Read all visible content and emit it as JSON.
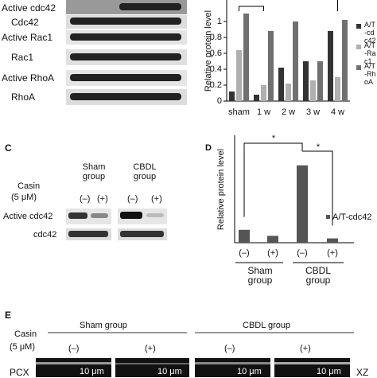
{
  "panel_a": {
    "rows": [
      "Active cdc42",
      "Cdc42",
      "Active Rac1",
      "Rac1",
      "Active RhoA",
      "RhoA"
    ]
  },
  "panel_c": {
    "letter": "C",
    "treatment": "Casin",
    "dose": "(5 μM)",
    "groups": [
      "Sham group",
      "CBDL group"
    ],
    "signs": [
      "(–)",
      "(+)",
      "(–)",
      "(+)"
    ],
    "rows": [
      "Active cdc42",
      "cdc42"
    ]
  },
  "panel_e": {
    "letter": "E",
    "treatment": "Casin",
    "dose": "(5 μM)",
    "groups": [
      "Sham group",
      "CBDL group"
    ],
    "signs": [
      "(–)",
      "(+)",
      "(–)",
      "(+)"
    ],
    "row": "PCX",
    "scale_bar": "10 μm",
    "view": "XZ"
  },
  "chart_data": [
    {
      "type": "bar",
      "y_label": "Relative protein level",
      "categories": [
        "sham",
        "1 w",
        "2 w",
        "3 w",
        "4 w"
      ],
      "series": [
        {
          "name": "A/T-cdc42",
          "color": "#333333",
          "values": [
            0.12,
            0.08,
            0.42,
            0.5,
            0.88
          ]
        },
        {
          "name": "A/T-Rac1",
          "color": "#b0b0b0",
          "values": [
            0.64,
            0.2,
            0.22,
            0.26,
            0.3
          ]
        },
        {
          "name": "A/T-RhoA",
          "color": "#707070",
          "values": [
            1.1,
            0.88,
            1.0,
            0.5,
            1.02
          ]
        }
      ],
      "ylim": [
        0,
        1.27
      ],
      "yticks": [
        0,
        0.2,
        0.4,
        0.6,
        0.8,
        1
      ]
    },
    {
      "type": "bar",
      "letter": "D",
      "y_label": "Relative protein level",
      "categories": [
        "(–)",
        "(+)",
        "(–)",
        "(+)"
      ],
      "groups": [
        "Sham group",
        "CBDL group"
      ],
      "series": [
        {
          "name": "A/T-cdc42",
          "color": "#555555",
          "values": [
            0.15,
            0.08,
            0.9,
            0.05
          ]
        }
      ],
      "ylim": [
        0,
        1.25
      ],
      "annotations": [
        "*",
        "*"
      ]
    }
  ]
}
